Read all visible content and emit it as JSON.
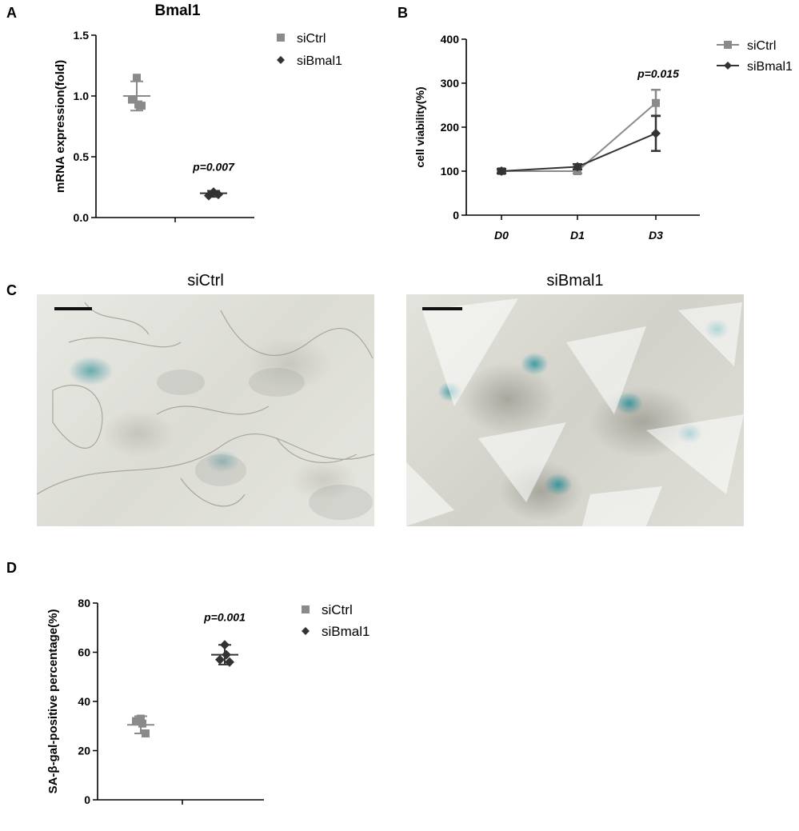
{
  "panels": {
    "a": "A",
    "b": "B",
    "c": "C",
    "d": "D"
  },
  "colors": {
    "siCtrl": "#8a8a8a",
    "siBmal1": "#333333",
    "axis": "#000000"
  },
  "chart_data": [
    {
      "id": "A",
      "type": "scatter",
      "title": "Bmal1",
      "ylabel": "mRNA expression(fold)",
      "ylim": [
        0,
        1.5
      ],
      "yticks": [
        "0.0",
        "0.5",
        "1.0",
        "1.5"
      ],
      "annotation": "p=0.007",
      "legend": [
        {
          "name": "siCtrl",
          "marker": "square"
        },
        {
          "name": "siBmal1",
          "marker": "diamond"
        }
      ],
      "series": [
        {
          "name": "siCtrl",
          "marker": "square",
          "points": [
            1.15,
            0.97,
            0.92,
            0.93
          ],
          "mean": 1.0,
          "err_low": 0.88,
          "err_high": 1.12
        },
        {
          "name": "siBmal1",
          "marker": "diamond",
          "points": [
            0.21,
            0.18,
            0.19
          ],
          "mean": 0.2,
          "err_low": 0.17,
          "err_high": 0.22
        }
      ]
    },
    {
      "id": "B",
      "type": "line",
      "ylabel": "cell viability(%)",
      "ylim": [
        0,
        400
      ],
      "yticks": [
        "0",
        "100",
        "200",
        "300",
        "400"
      ],
      "categories": [
        "D0",
        "D1",
        "D3"
      ],
      "annotation": "p=0.015",
      "legend": [
        {
          "name": "siCtrl",
          "marker": "square"
        },
        {
          "name": "siBmal1",
          "marker": "diamond"
        }
      ],
      "series": [
        {
          "name": "siCtrl",
          "marker": "square",
          "values": [
            100,
            100,
            255
          ],
          "err": [
            4,
            5,
            30
          ]
        },
        {
          "name": "siBmal1",
          "marker": "diamond",
          "values": [
            100,
            110,
            186
          ],
          "err": [
            5,
            6,
            40
          ]
        }
      ]
    },
    {
      "id": "D",
      "type": "scatter",
      "ylabel": "SA-β-gal-positive percentage(%)",
      "ylim": [
        0,
        80
      ],
      "yticks": [
        "0",
        "20",
        "40",
        "60",
        "80"
      ],
      "annotation": "p=0.001",
      "legend": [
        {
          "name": "siCtrl",
          "marker": "square"
        },
        {
          "name": "siBmal1",
          "marker": "diamond"
        }
      ],
      "series": [
        {
          "name": "siCtrl",
          "marker": "square",
          "points": [
            33,
            32,
            27,
            31
          ],
          "mean": 30.5,
          "err_low": 27,
          "err_high": 34
        },
        {
          "name": "siBmal1",
          "marker": "diamond",
          "points": [
            63,
            57,
            56,
            59
          ],
          "mean": 59,
          "err_low": 55,
          "err_high": 63
        }
      ]
    }
  ],
  "micrographs": [
    {
      "title": "siCtrl"
    },
    {
      "title": "siBmal1"
    }
  ]
}
